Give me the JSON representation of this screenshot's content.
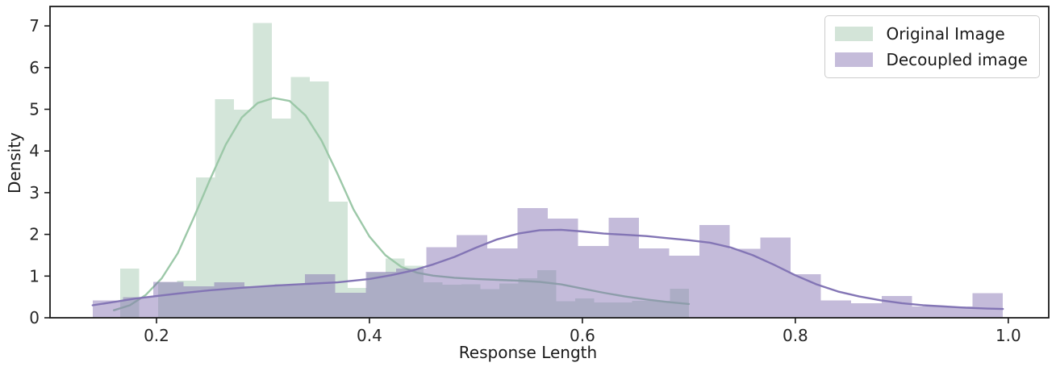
{
  "chart_data": {
    "type": "histogram-kde",
    "title": "",
    "xlabel": "Response Length",
    "ylabel": "Density",
    "xlim": [
      0.1,
      1.038
    ],
    "ylim": [
      0,
      7.466
    ],
    "grid": false,
    "legend_position": "upper right",
    "xticks": [
      {
        "value": 0.2,
        "label": "0.2"
      },
      {
        "value": 0.4,
        "label": "0.4"
      },
      {
        "value": 0.6,
        "label": "0.6"
      },
      {
        "value": 0.8,
        "label": "0.8"
      },
      {
        "value": 1.0,
        "label": "1.0"
      }
    ],
    "yticks": [
      {
        "value": 0,
        "label": "0"
      },
      {
        "value": 1,
        "label": "1"
      },
      {
        "value": 2,
        "label": "2"
      },
      {
        "value": 3,
        "label": "3"
      },
      {
        "value": 4,
        "label": "4"
      },
      {
        "value": 5,
        "label": "5"
      },
      {
        "value": 6,
        "label": "6"
      },
      {
        "value": 7,
        "label": "7"
      }
    ],
    "series": [
      {
        "name": "Original Image",
        "bar_fill": "rgba(97,160,120,0.28)",
        "line_color": "#9cc8a8",
        "swatch_color": "#d3e4d8",
        "bin_start": 0.166,
        "bin_width": 0.0178,
        "bin_heights": [
          1.18,
          0,
          0.85,
          0.89,
          3.37,
          5.24,
          4.99,
          7.07,
          4.78,
          5.77,
          5.67,
          2.79,
          0.72,
          1.08,
          1.42,
          1.25,
          0.85,
          0.79,
          0.8,
          0.69,
          0.82,
          0.95,
          1.14,
          0.4,
          0.46,
          0.37,
          0.37,
          0.41,
          0.41,
          0.7
        ],
        "kde": [
          [
            0.16,
            0.18
          ],
          [
            0.175,
            0.3
          ],
          [
            0.19,
            0.55
          ],
          [
            0.205,
            0.95
          ],
          [
            0.22,
            1.55
          ],
          [
            0.235,
            2.4
          ],
          [
            0.25,
            3.3
          ],
          [
            0.265,
            4.15
          ],
          [
            0.28,
            4.8
          ],
          [
            0.295,
            5.15
          ],
          [
            0.31,
            5.27
          ],
          [
            0.325,
            5.2
          ],
          [
            0.34,
            4.85
          ],
          [
            0.355,
            4.25
          ],
          [
            0.37,
            3.45
          ],
          [
            0.385,
            2.6
          ],
          [
            0.4,
            1.95
          ],
          [
            0.415,
            1.5
          ],
          [
            0.43,
            1.22
          ],
          [
            0.445,
            1.08
          ],
          [
            0.46,
            1.01
          ],
          [
            0.48,
            0.96
          ],
          [
            0.5,
            0.93
          ],
          [
            0.52,
            0.91
          ],
          [
            0.54,
            0.89
          ],
          [
            0.56,
            0.86
          ],
          [
            0.58,
            0.8
          ],
          [
            0.6,
            0.7
          ],
          [
            0.62,
            0.6
          ],
          [
            0.64,
            0.51
          ],
          [
            0.66,
            0.44
          ],
          [
            0.68,
            0.38
          ],
          [
            0.7,
            0.33
          ]
        ]
      },
      {
        "name": "Decoupled image",
        "bar_fill": "rgba(124,104,172,0.45)",
        "line_color": "#8375b5",
        "swatch_color": "#c5bcda",
        "bin_start": 0.14,
        "bin_width": 0.0285,
        "bin_heights": [
          0.42,
          0.49,
          0.86,
          0.75,
          0.85,
          0.75,
          0.8,
          1.04,
          0.6,
          1.1,
          1.18,
          1.69,
          1.98,
          1.66,
          2.63,
          2.38,
          1.72,
          2.4,
          1.66,
          1.49,
          2.22,
          1.65,
          1.92,
          1.04,
          0.42,
          0.35,
          0.52,
          0.27,
          0.27,
          0.59
        ],
        "kde": [
          [
            0.14,
            0.3
          ],
          [
            0.16,
            0.38
          ],
          [
            0.18,
            0.46
          ],
          [
            0.2,
            0.52
          ],
          [
            0.22,
            0.58
          ],
          [
            0.25,
            0.66
          ],
          [
            0.28,
            0.72
          ],
          [
            0.31,
            0.77
          ],
          [
            0.34,
            0.81
          ],
          [
            0.37,
            0.85
          ],
          [
            0.4,
            0.93
          ],
          [
            0.42,
            1.02
          ],
          [
            0.44,
            1.13
          ],
          [
            0.46,
            1.28
          ],
          [
            0.48,
            1.46
          ],
          [
            0.5,
            1.68
          ],
          [
            0.52,
            1.88
          ],
          [
            0.54,
            2.02
          ],
          [
            0.56,
            2.1
          ],
          [
            0.58,
            2.11
          ],
          [
            0.6,
            2.07
          ],
          [
            0.62,
            2.02
          ],
          [
            0.64,
            1.99
          ],
          [
            0.66,
            1.96
          ],
          [
            0.68,
            1.91
          ],
          [
            0.7,
            1.86
          ],
          [
            0.72,
            1.8
          ],
          [
            0.74,
            1.68
          ],
          [
            0.76,
            1.5
          ],
          [
            0.78,
            1.27
          ],
          [
            0.8,
            1.02
          ],
          [
            0.82,
            0.8
          ],
          [
            0.84,
            0.63
          ],
          [
            0.86,
            0.51
          ],
          [
            0.88,
            0.42
          ],
          [
            0.9,
            0.35
          ],
          [
            0.92,
            0.3
          ],
          [
            0.94,
            0.27
          ],
          [
            0.96,
            0.24
          ],
          [
            0.98,
            0.22
          ],
          [
            0.995,
            0.21
          ]
        ]
      }
    ]
  },
  "legend": {
    "items": [
      {
        "label": "Original Image"
      },
      {
        "label": "Decoupled image"
      }
    ]
  },
  "axes": {
    "xlabel": "Response Length",
    "ylabel": "Density"
  }
}
